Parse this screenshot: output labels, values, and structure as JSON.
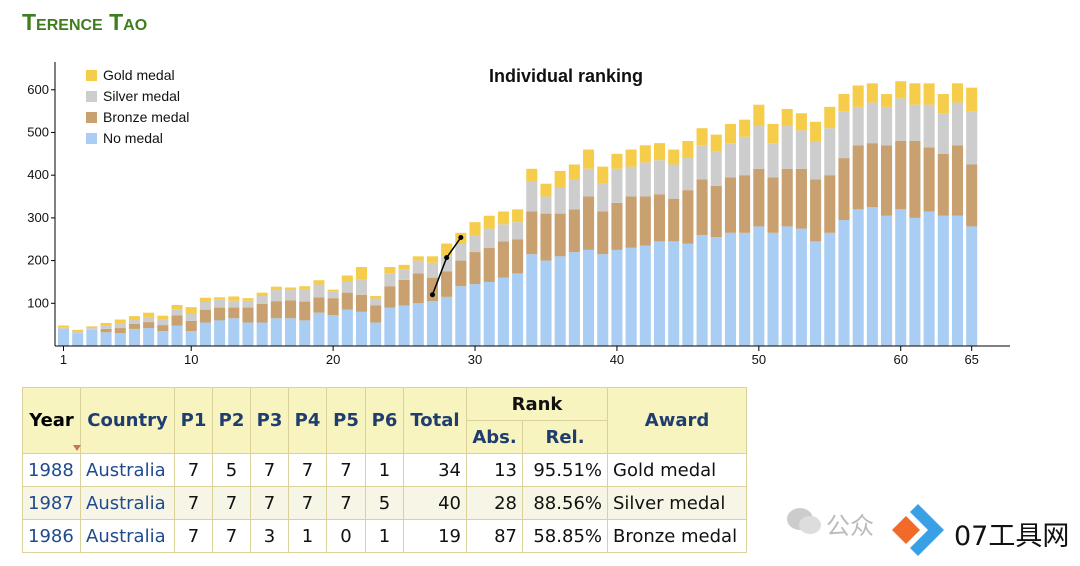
{
  "header": {
    "title": "Terence Tao"
  },
  "chart_data": {
    "type": "bar",
    "stacked": true,
    "title": "Individual ranking",
    "x": [
      1,
      2,
      3,
      4,
      5,
      6,
      7,
      8,
      9,
      10,
      11,
      12,
      13,
      14,
      15,
      16,
      17,
      18,
      19,
      20,
      21,
      22,
      23,
      24,
      25,
      26,
      27,
      28,
      29,
      30,
      31,
      32,
      33,
      34,
      35,
      36,
      37,
      38,
      39,
      40,
      41,
      42,
      43,
      44,
      45,
      46,
      47,
      48,
      49,
      50,
      51,
      52,
      53,
      54,
      55,
      56,
      57,
      58,
      59,
      60,
      61,
      62,
      63,
      64,
      65
    ],
    "xlim": [
      0.4,
      67.7
    ],
    "xticks": [
      1,
      10,
      20,
      30,
      40,
      50,
      60,
      65
    ],
    "ylim": [
      0,
      665
    ],
    "yticks": [
      100,
      200,
      300,
      400,
      500,
      600
    ],
    "legend": "top-left",
    "series": [
      {
        "name": "No medal",
        "color": "#a9cdf3",
        "values": [
          40,
          30,
          38,
          32,
          30,
          40,
          42,
          35,
          48,
          35,
          55,
          60,
          65,
          55,
          55,
          65,
          65,
          60,
          78,
          72,
          85,
          80,
          55,
          90,
          95,
          100,
          105,
          115,
          140,
          145,
          150,
          160,
          170,
          215,
          200,
          210,
          220,
          225,
          215,
          225,
          230,
          235,
          245,
          245,
          240,
          260,
          255,
          265,
          265,
          280,
          265,
          280,
          275,
          245,
          265,
          295,
          320,
          325,
          305,
          320,
          300,
          315,
          305,
          305,
          280
        ]
      },
      {
        "name": "Bronze medal",
        "color": "#c9a06f",
        "values": [
          0,
          0,
          0,
          8,
          12,
          12,
          14,
          14,
          24,
          24,
          30,
          30,
          25,
          35,
          44,
          40,
          42,
          44,
          36,
          40,
          40,
          40,
          40,
          50,
          60,
          70,
          55,
          60,
          60,
          75,
          80,
          85,
          80,
          100,
          110,
          100,
          100,
          125,
          100,
          110,
          120,
          115,
          110,
          100,
          125,
          130,
          120,
          130,
          135,
          135,
          130,
          135,
          140,
          145,
          135,
          145,
          150,
          150,
          165,
          160,
          180,
          150,
          145,
          165,
          145
        ]
      },
      {
        "name": "Silver medal",
        "color": "#cdcdcd",
        "values": [
          4,
          4,
          4,
          8,
          10,
          10,
          12,
          14,
          14,
          16,
          18,
          18,
          16,
          16,
          18,
          26,
          24,
          28,
          30,
          16,
          26,
          35,
          16,
          30,
          25,
          30,
          35,
          35,
          40,
          40,
          45,
          40,
          40,
          70,
          40,
          60,
          70,
          65,
          65,
          80,
          70,
          80,
          80,
          80,
          75,
          80,
          80,
          80,
          90,
          100,
          80,
          100,
          90,
          90,
          110,
          110,
          90,
          95,
          90,
          100,
          85,
          100,
          95,
          100,
          125
        ]
      },
      {
        "name": "Gold medal",
        "color": "#f5cd4b",
        "values": [
          4,
          4,
          4,
          6,
          10,
          8,
          10,
          8,
          10,
          16,
          10,
          6,
          10,
          6,
          8,
          8,
          6,
          8,
          10,
          4,
          14,
          30,
          6,
          15,
          10,
          10,
          15,
          30,
          25,
          30,
          30,
          30,
          30,
          30,
          30,
          40,
          35,
          45,
          40,
          35,
          40,
          40,
          40,
          35,
          40,
          40,
          40,
          45,
          40,
          50,
          45,
          40,
          40,
          45,
          50,
          40,
          50,
          45,
          30,
          40,
          50,
          50,
          45,
          45,
          55
        ]
      }
    ],
    "line": {
      "x": [
        27,
        28,
        29
      ],
      "values": [
        120,
        207,
        254
      ]
    }
  },
  "table": {
    "headers": [
      "Year",
      "Country",
      "P1",
      "P2",
      "P3",
      "P4",
      "P5",
      "P6",
      "Total",
      "Rank",
      "Award"
    ],
    "subheaders": [
      "Abs.",
      "Rel."
    ],
    "rows": [
      [
        "1988",
        "Australia",
        7,
        5,
        7,
        7,
        7,
        1,
        34,
        13,
        "95.51%",
        "Gold medal"
      ],
      [
        "1987",
        "Australia",
        7,
        7,
        7,
        7,
        7,
        5,
        40,
        28,
        "88.56%",
        "Silver medal"
      ],
      [
        "1986",
        "Australia",
        7,
        7,
        3,
        1,
        0,
        1,
        19,
        87,
        "58.85%",
        "Bronze medal"
      ]
    ]
  },
  "watermark": {
    "faded": "公众",
    "brand": "07工具网"
  }
}
